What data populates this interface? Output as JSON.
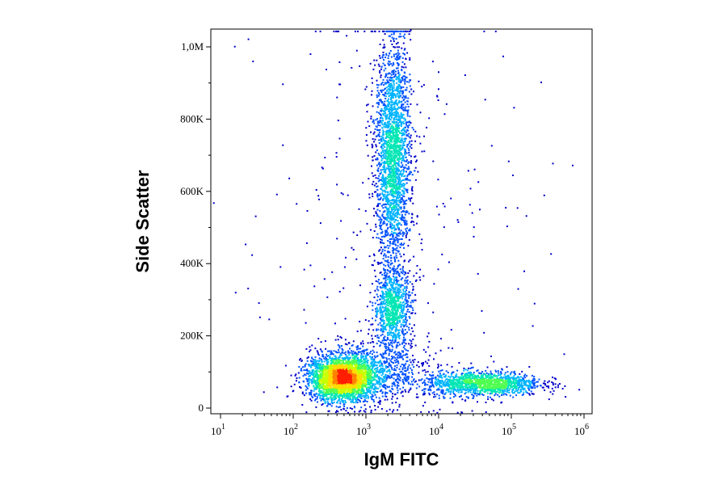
{
  "chart_data": {
    "type": "scatter",
    "subtype": "flow-cytometry density dot plot",
    "xlabel": "IgM FITC",
    "ylabel": "Side Scatter",
    "x_scale": "log",
    "x_range": [
      10,
      1000000
    ],
    "ylim": [
      0,
      1050000
    ],
    "grid": false,
    "x_ticks": [
      {
        "value": 10,
        "base": "10",
        "exp": "1"
      },
      {
        "value": 100,
        "base": "10",
        "exp": "2"
      },
      {
        "value": 1000,
        "base": "10",
        "exp": "3"
      },
      {
        "value": 10000,
        "base": "10",
        "exp": "4"
      },
      {
        "value": 100000,
        "base": "10",
        "exp": "5"
      },
      {
        "value": 1000000,
        "base": "10",
        "exp": "6"
      }
    ],
    "y_ticks": [
      {
        "value": 0,
        "label": "0"
      },
      {
        "value": 200000,
        "label": "200K"
      },
      {
        "value": 400000,
        "label": "400K"
      },
      {
        "value": 600000,
        "label": "600K"
      },
      {
        "value": 800000,
        "label": "800K"
      },
      {
        "value": 1000000,
        "label": "1,0M"
      }
    ],
    "colormap": [
      "#0000c8",
      "#0050ff",
      "#00b4ff",
      "#00e6b4",
      "#50ff50",
      "#c8ff00",
      "#ffdc00",
      "#ff8200",
      "#ff1e00"
    ],
    "populations": [
      {
        "center_x": 450,
        "center_y": 85000,
        "spread_log_x": 0.22,
        "spread_y": 30000,
        "weight": 0.3
      },
      {
        "center_x": 1200,
        "center_y": 100000,
        "spread_log_x": 0.4,
        "spread_y": 45000,
        "weight": 0.1
      },
      {
        "center_x": 2300,
        "center_y": 280000,
        "spread_log_x": 0.13,
        "spread_y": 55000,
        "weight": 0.1
      },
      {
        "center_x": 2300,
        "center_y": 700000,
        "spread_log_x": 0.12,
        "spread_y": 160000,
        "weight": 0.26
      },
      {
        "center_x": 40000,
        "center_y": 70000,
        "spread_log_x": 0.4,
        "spread_y": 17000,
        "weight": 0.15
      },
      {
        "center_x": 2000,
        "center_y": 500000,
        "spread_log_x": 1.0,
        "spread_y": 350000,
        "weight": 0.03
      }
    ]
  }
}
